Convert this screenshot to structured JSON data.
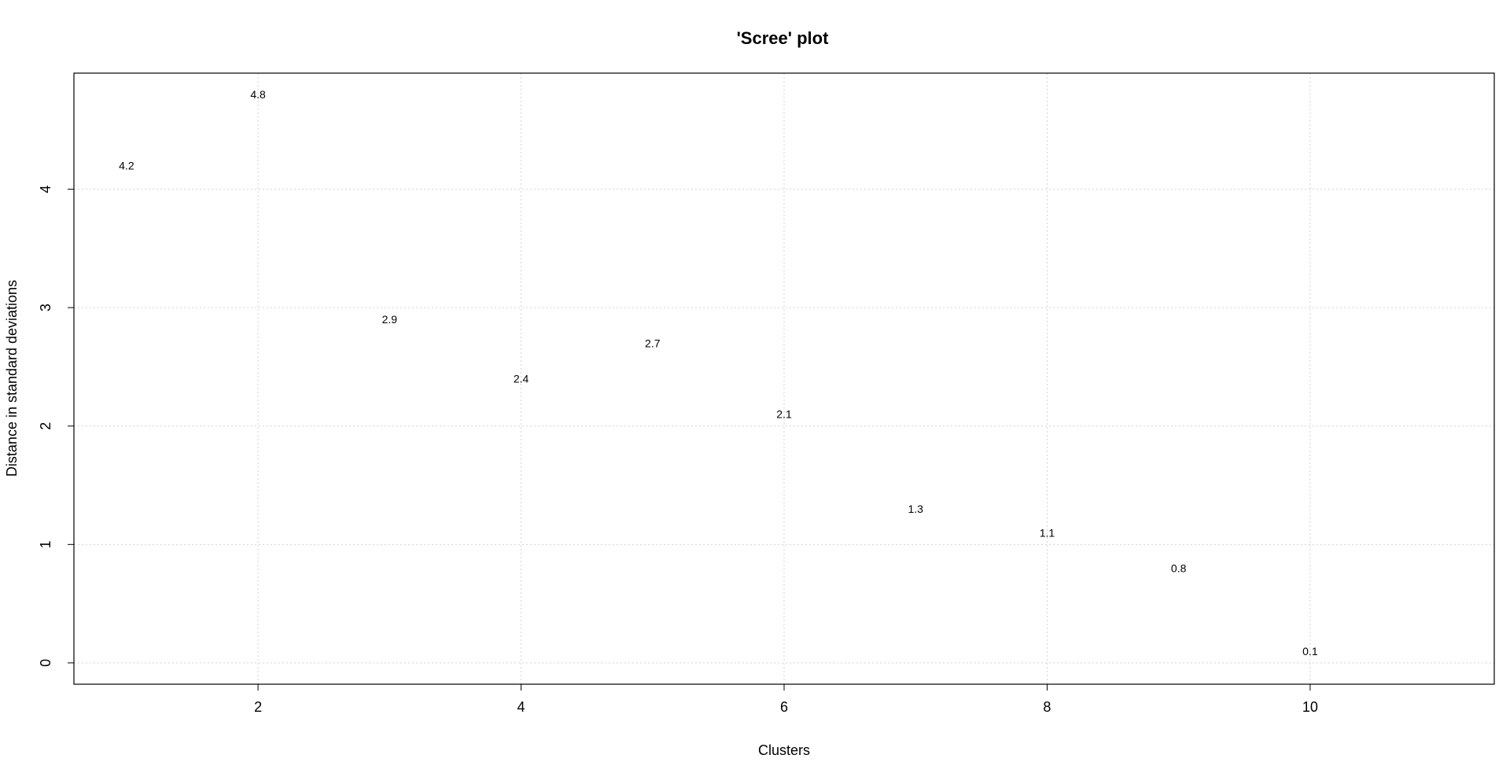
{
  "chart_data": {
    "type": "scatter",
    "title": "'Scree' plot",
    "xlabel": "Clusters",
    "ylabel": "Distance in standard deviations",
    "xlim": [
      0.6,
      11.4
    ],
    "ylim": [
      -0.18,
      4.98
    ],
    "x_ticks": [
      2,
      4,
      6,
      8,
      10
    ],
    "y_ticks": [
      0,
      1,
      2,
      3,
      4
    ],
    "grid": true,
    "points": [
      {
        "x": 1,
        "y": 4.2,
        "label": "4.2"
      },
      {
        "x": 2,
        "y": 4.8,
        "label": "4.8"
      },
      {
        "x": 3,
        "y": 2.9,
        "label": "2.9"
      },
      {
        "x": 4,
        "y": 2.4,
        "label": "2.4"
      },
      {
        "x": 5,
        "y": 2.7,
        "label": "2.7"
      },
      {
        "x": 6,
        "y": 2.1,
        "label": "2.1"
      },
      {
        "x": 7,
        "y": 1.3,
        "label": "1.3"
      },
      {
        "x": 8,
        "y": 1.1,
        "label": "1.1"
      },
      {
        "x": 9,
        "y": 0.8,
        "label": "0.8"
      },
      {
        "x": 10,
        "y": 0.1,
        "label": "0.1"
      }
    ]
  }
}
